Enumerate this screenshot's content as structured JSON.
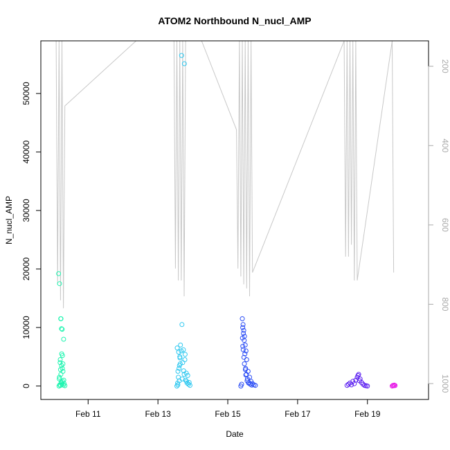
{
  "chart_data": {
    "type": "scatter",
    "title": "ATOM2 Northbound N_nucl_AMP",
    "xlabel": "Date",
    "ylabel": "N_nucl_AMP",
    "xlim": [
      "2014-02-09 15:30",
      "2014-02-20 18:00"
    ],
    "ylim": [
      -2300,
      59000
    ],
    "x_ticks": [
      {
        "date": "2014-02-11",
        "label": "Feb 11"
      },
      {
        "date": "2014-02-13",
        "label": "Feb 13"
      },
      {
        "date": "2014-02-15",
        "label": "Feb 15"
      },
      {
        "date": "2014-02-17",
        "label": "Feb 17"
      },
      {
        "date": "2014-02-19",
        "label": "Feb 19"
      }
    ],
    "y_ticks": [
      0,
      10000,
      20000,
      30000,
      40000,
      50000
    ],
    "secondary_axis": {
      "description": "depth, inverted (gray line)",
      "ylim": [
        136,
        1040
      ],
      "ticks": [
        200,
        400,
        600,
        800,
        1000
      ],
      "color": "#c8c8c8"
    },
    "point_colors": [
      "#00ffaa",
      "#00d9ff",
      "#0040ff",
      "#6a00ff",
      "#ff00ee"
    ],
    "series": [
      {
        "color": "#1ef5b0",
        "x": [
          "2014-02-10 04:00",
          "2014-02-10 04:30",
          "2014-02-10 05:00",
          "2014-02-10 05:30",
          "2014-02-10 06:00",
          "2014-02-10 06:30",
          "2014-02-10 07:00",
          "2014-02-10 07:30",
          "2014-02-10 08:00",
          "2014-02-10 04:15",
          "2014-02-10 05:15",
          "2014-02-10 06:15",
          "2014-02-10 07:15",
          "2014-02-10 04:45",
          "2014-02-10 05:45",
          "2014-02-10 06:45",
          "2014-02-10 03:40",
          "2014-02-10 04:20",
          "2014-02-10 05:10",
          "2014-02-10 06:10",
          "2014-02-10 07:10",
          "2014-02-10 05:20",
          "2014-02-10 05:40",
          "2014-02-10 06:20",
          "2014-02-10 05:50",
          "2014-02-10 04:50",
          "2014-02-10 06:40",
          "2014-02-10 05:00",
          "2014-02-10 04:10",
          "2014-02-10 05:30"
        ],
        "values": [
          0,
          200,
          100,
          500,
          300,
          800,
          150,
          400,
          50,
          1500,
          2000,
          3000,
          1000,
          4000,
          3500,
          2500,
          19200,
          17500,
          11500,
          9700,
          8000,
          11500,
          9800,
          5200,
          5500,
          4500,
          3800,
          2800,
          1200,
          700
        ]
      },
      {
        "color": "#2ec8f0",
        "x": [
          "2014-02-13 13:00",
          "2014-02-13 13:30",
          "2014-02-13 14:00",
          "2014-02-13 14:30",
          "2014-02-13 15:00",
          "2014-02-13 16:00",
          "2014-02-13 17:00",
          "2014-02-13 18:00",
          "2014-02-13 19:00",
          "2014-02-13 20:00",
          "2014-02-13 21:00",
          "2014-02-13 22:00",
          "2014-02-13 13:15",
          "2014-02-13 14:15",
          "2014-02-13 15:30",
          "2014-02-13 16:30",
          "2014-02-13 17:30",
          "2014-02-13 18:30",
          "2014-02-13 13:45",
          "2014-02-13 14:45",
          "2014-02-13 16:15",
          "2014-02-13 18:10",
          "2014-02-13 19:30",
          "2014-02-13 15:10",
          "2014-02-13 15:20",
          "2014-02-13 20:30",
          "2014-02-13 21:30",
          "2014-02-13 13:40",
          "2014-02-13 14:40",
          "2014-02-13 16:40",
          "2014-02-13 17:40",
          "2014-02-13 18:40",
          "2014-02-13 19:40"
        ],
        "values": [
          0,
          500,
          1500,
          3000,
          5000,
          6000,
          4000,
          2000,
          1000,
          500,
          300,
          100,
          6500,
          5800,
          7000,
          10500,
          6200,
          4500,
          2500,
          3500,
          56500,
          55100,
          2200,
          4800,
          3800,
          1800,
          600,
          200,
          900,
          1200,
          2600,
          5400,
          800
        ]
      },
      {
        "color": "#2a4cf5",
        "x": [
          "2014-02-15 09:00",
          "2014-02-15 09:30",
          "2014-02-15 10:00",
          "2014-02-15 10:30",
          "2014-02-15 11:00",
          "2014-02-15 11:30",
          "2014-02-15 12:00",
          "2014-02-15 12:30",
          "2014-02-15 13:00",
          "2014-02-15 14:00",
          "2014-02-15 15:00",
          "2014-02-15 16:00",
          "2014-02-15 17:00",
          "2014-02-15 18:00",
          "2014-02-15 19:00",
          "2014-02-15 10:15",
          "2014-02-15 10:45",
          "2014-02-15 11:15",
          "2014-02-15 11:45",
          "2014-02-15 12:15",
          "2014-02-15 12:45",
          "2014-02-15 13:30",
          "2014-02-15 14:30",
          "2014-02-15 15:30",
          "2014-02-15 16:30",
          "2014-02-15 10:05",
          "2014-02-15 10:20",
          "2014-02-15 10:35",
          "2014-02-15 11:05",
          "2014-02-15 11:25",
          "2014-02-15 12:05",
          "2014-02-15 12:25",
          "2014-02-15 13:15",
          "2014-02-15 14:15"
        ],
        "values": [
          0,
          300,
          11500,
          10500,
          9500,
          8500,
          7000,
          6000,
          4500,
          2500,
          1500,
          800,
          400,
          200,
          100,
          10000,
          9000,
          7800,
          5500,
          3000,
          2000,
          1200,
          600,
          300,
          150,
          8200,
          6800,
          6200,
          4900,
          3800,
          2800,
          1900,
          900,
          500
        ]
      },
      {
        "color": "#5a1ef0",
        "x": [
          "2014-02-18 10:00",
          "2014-02-18 11:00",
          "2014-02-18 12:00",
          "2014-02-18 13:00",
          "2014-02-18 14:00",
          "2014-02-18 15:00",
          "2014-02-18 16:00",
          "2014-02-18 17:00",
          "2014-02-18 18:00",
          "2014-02-18 19:00",
          "2014-02-18 20:00",
          "2014-02-18 21:00",
          "2014-02-18 22:00",
          "2014-02-18 23:00",
          "2014-02-19 00:00",
          "2014-02-18 17:30",
          "2014-02-18 18:30"
        ],
        "values": [
          100,
          300,
          500,
          200,
          800,
          400,
          1000,
          1500,
          2000,
          1200,
          600,
          300,
          100,
          50,
          0,
          1800,
          900
        ]
      },
      {
        "color": "#e81ee8",
        "x": [
          "2014-02-19 17:00",
          "2014-02-19 17:30",
          "2014-02-19 18:00",
          "2014-02-19 18:30",
          "2014-02-19 19:00"
        ],
        "values": [
          0,
          100,
          50,
          150,
          80
        ]
      }
    ],
    "depth_line": {
      "color": "#c8c8c8",
      "x": [
        "2014-02-10 02:00",
        "2014-02-10 03:00",
        "2014-02-10 04:00",
        "2014-02-10 05:00",
        "2014-02-10 06:00",
        "2014-02-10 07:00",
        "2014-02-10 08:00",
        "2014-02-12 09:00",
        "2014-02-13 11:00",
        "2014-02-13 12:00",
        "2014-02-13 13:00",
        "2014-02-13 14:00",
        "2014-02-13 15:00",
        "2014-02-13 16:00",
        "2014-02-13 17:00",
        "2014-02-13 18:00",
        "2014-02-13 19:00",
        "2014-02-14 06:00",
        "2014-02-15 06:00",
        "2014-02-15 07:00",
        "2014-02-15 08:00",
        "2014-02-15 09:00",
        "2014-02-15 10:00",
        "2014-02-15 11:00",
        "2014-02-15 12:00",
        "2014-02-15 13:00",
        "2014-02-15 14:00",
        "2014-02-15 15:00",
        "2014-02-15 16:00",
        "2014-02-15 17:00",
        "2014-02-18 08:00",
        "2014-02-18 09:00",
        "2014-02-18 10:00",
        "2014-02-18 11:00",
        "2014-02-18 12:00",
        "2014-02-18 13:00",
        "2014-02-18 14:00",
        "2014-02-18 15:00",
        "2014-02-18 16:00",
        "2014-02-18 17:00",
        "2014-02-19 17:00",
        "2014-02-19 18:00"
      ],
      "values": [
        136,
        750,
        136,
        790,
        136,
        810,
        300,
        136,
        136,
        710,
        136,
        740,
        136,
        740,
        136,
        780,
        136,
        136,
        360,
        710,
        136,
        730,
        136,
        750,
        136,
        760,
        136,
        780,
        136,
        720,
        136,
        680,
        136,
        680,
        136,
        650,
        136,
        740,
        136,
        740,
        136,
        720
      ]
    }
  }
}
